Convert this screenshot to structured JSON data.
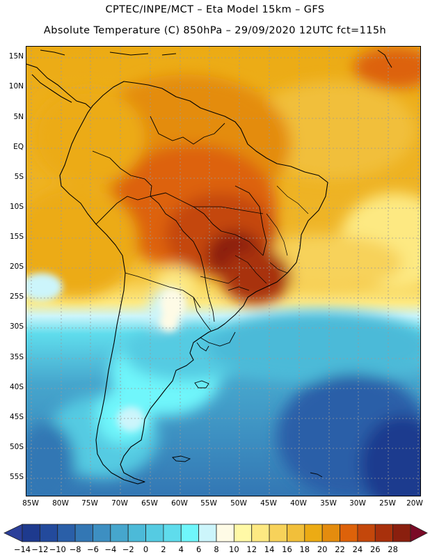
{
  "title_line1": "CPTEC/INPE/MCT –  Eta Model 15km – GFS",
  "title_line2": "Absolute Temperature (C) 850hPa – 29/09/2020 12UTC fct=115h",
  "lat_labels": [
    "15N",
    "10N",
    "5N",
    "EQ",
    "5S",
    "10S",
    "15S",
    "20S",
    "25S",
    "30S",
    "35S",
    "40S",
    "45S",
    "50S",
    "55S"
  ],
  "lon_labels": [
    "85W",
    "80W",
    "75W",
    "70W",
    "65W",
    "60W",
    "55W",
    "50W",
    "45W",
    "40W",
    "35W",
    "30W",
    "25W",
    "20W"
  ],
  "colorbar": {
    "labels": [
      "-14",
      "-12",
      "-10",
      "-8",
      "-6",
      "-4",
      "-2",
      "0",
      "2",
      "4",
      "6",
      "8",
      "10",
      "12",
      "14",
      "16",
      "18",
      "20",
      "22",
      "24",
      "26",
      "28"
    ],
    "colors": [
      "#1e3a8e",
      "#234a9c",
      "#2a5fa8",
      "#3377b4",
      "#3d8fc2",
      "#46a6cd",
      "#4cbad8",
      "#55cbe2",
      "#5fdcec",
      "#6ff6fb",
      "#ccf5fb",
      "#fefbe6",
      "#fff9a6",
      "#fde982",
      "#f7d25a",
      "#f1bf3a",
      "#ecab14",
      "#e48c0e",
      "#dd620a",
      "#c4470b",
      "#a8300c",
      "#8a1f0e"
    ],
    "under_color": "#2b3f9a",
    "over_color": "#7a0a26"
  }
}
